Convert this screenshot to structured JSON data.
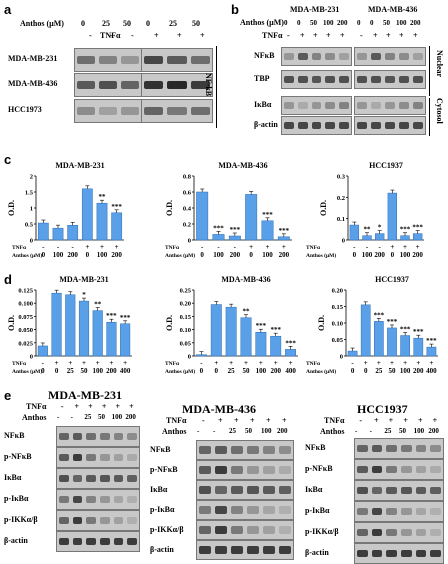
{
  "panel_a": {
    "letter": "a",
    "anthos_label": "Anthos (µM)",
    "anthos_doses": [
      "0",
      "25",
      "50",
      "0",
      "25",
      "50"
    ],
    "tnf_label": "TNFα",
    "tnf_signs": [
      "-",
      "-",
      "-",
      "+",
      "+",
      "+"
    ],
    "rows": [
      "MDA-MB-231",
      "MDA-MB-436",
      "HCC1973"
    ],
    "side_label": "NF-kB"
  },
  "panel_b": {
    "letter": "b",
    "cell_lines": [
      "MDA-MB-231",
      "MDA-MB-436"
    ],
    "anthos_label": "Anthos (µM)",
    "anthos_doses": [
      "0",
      "0",
      "50",
      "100",
      "200",
      "0",
      "0",
      "50",
      "100",
      "200"
    ],
    "tnf_label": "TNFα",
    "tnf_signs": [
      "-",
      "+",
      "+",
      "+",
      "+",
      "-",
      "+",
      "+",
      "+",
      "+"
    ],
    "rows": [
      "NFκB",
      "TBP",
      "IκBα",
      "β-actin"
    ],
    "side_labels": [
      "Nuclear",
      "Cytosol"
    ]
  },
  "panel_c": {
    "letter": "c",
    "x_tnf_label": "TNFα",
    "x_anthos_label": "Anthos (µM)",
    "x_tnf_signs": [
      "-",
      "-",
      "-",
      "+",
      "+",
      "+"
    ],
    "x_anthos_doses": [
      "0",
      "100",
      "200",
      "0",
      "100",
      "200"
    ]
  },
  "panel_d": {
    "letter": "d",
    "x_tnf_label": "TNFα",
    "x_anthos_label": "Anthos (µM)",
    "x_tnf_signs": [
      "-",
      "+",
      "+",
      "+",
      "+",
      "+",
      "+"
    ],
    "x_anthos_doses": [
      "0",
      "0",
      "25",
      "50",
      "100",
      "200",
      "400"
    ]
  },
  "panel_e": {
    "letter": "e",
    "tnf_label": "TNFα",
    "anthos_label": "Anthos",
    "tnf_signs": [
      "-",
      "+",
      "+",
      "+",
      "+",
      "+"
    ],
    "anthos_doses": [
      "-",
      "-",
      "25",
      "50",
      "100",
      "200"
    ],
    "rows": [
      "NFκB",
      "p-NFκB",
      "IκBα",
      "p-IκBα",
      "p-IKKα/β",
      "β-actin"
    ],
    "blots": [
      {
        "title": "MDA-MB-231"
      },
      {
        "title": "MDA-MB-436"
      },
      {
        "title": "HCC1937"
      }
    ]
  },
  "chart_data": [
    {
      "type": "bar",
      "panel": "c",
      "title": "MDA-MB-231",
      "ylabel": "O.D.",
      "ylim": [
        0,
        2
      ],
      "yticks": [
        "0",
        "0.5",
        "1",
        "1.5",
        "2"
      ],
      "categories": [
        "1",
        "2",
        "3",
        "4",
        "5",
        "6"
      ],
      "values": [
        0.53,
        0.37,
        0.46,
        1.6,
        1.15,
        0.85
      ],
      "significance": [
        "",
        "",
        "",
        "",
        "**",
        "***"
      ]
    },
    {
      "type": "bar",
      "panel": "c",
      "title": "MDA-MB-436",
      "ylabel": "O.D.",
      "ylim": [
        0,
        0.8
      ],
      "yticks": [
        "0",
        "0.2",
        "0.4",
        "0.6",
        "0.8"
      ],
      "categories": [
        "1",
        "2",
        "3",
        "4",
        "5",
        "6"
      ],
      "values": [
        0.6,
        0.07,
        0.05,
        0.57,
        0.24,
        0.04
      ],
      "significance": [
        "",
        "***",
        "***",
        "",
        "***",
        "***"
      ]
    },
    {
      "type": "bar",
      "panel": "c",
      "title": "HCC1937",
      "ylabel": "O.D.",
      "ylim": [
        0,
        0.3
      ],
      "yticks": [
        "0",
        "0.1",
        "0.2",
        "0.3"
      ],
      "categories": [
        "1",
        "2",
        "3",
        "4",
        "5",
        "6"
      ],
      "values": [
        0.07,
        0.02,
        0.03,
        0.22,
        0.02,
        0.03
      ],
      "significance": [
        "",
        "**",
        "*",
        "",
        "***",
        "***"
      ]
    },
    {
      "type": "bar",
      "panel": "d",
      "title": "MDA-MB-231",
      "ylabel": "O.D.",
      "ylim": [
        0,
        0.125
      ],
      "yticks": [
        "0",
        "0.025",
        "0.050",
        "0.075",
        "0.100",
        "0.125"
      ],
      "categories": [
        "1",
        "2",
        "3",
        "4",
        "5",
        "6",
        "7"
      ],
      "values": [
        0.019,
        0.119,
        0.116,
        0.104,
        0.086,
        0.064,
        0.061
      ],
      "significance": [
        "",
        "",
        "",
        "*",
        "**",
        "***",
        "***"
      ]
    },
    {
      "type": "bar",
      "panel": "d",
      "title": "MDA-MB-436",
      "ylabel": "O.D.",
      "ylim": [
        0,
        0.25
      ],
      "yticks": [
        "0",
        "0.05",
        "0.10",
        "0.15",
        "0.20",
        "0.25"
      ],
      "categories": [
        "1",
        "2",
        "3",
        "4",
        "5",
        "6",
        "7"
      ],
      "values": [
        0.005,
        0.195,
        0.185,
        0.145,
        0.09,
        0.075,
        0.025
      ],
      "significance": [
        "",
        "",
        "",
        "**",
        "***",
        "***",
        "***"
      ]
    },
    {
      "type": "bar",
      "panel": "d",
      "title": "HCC1937",
      "ylabel": "O.D.",
      "ylim": [
        0,
        0.2
      ],
      "yticks": [
        "0",
        "0.05",
        "0.10",
        "0.15",
        "0.20"
      ],
      "categories": [
        "1",
        "2",
        "3",
        "4",
        "5",
        "6",
        "7"
      ],
      "values": [
        0.015,
        0.155,
        0.105,
        0.085,
        0.062,
        0.054,
        0.027
      ],
      "significance": [
        "",
        "",
        "***",
        "***",
        "***",
        "***",
        "***"
      ]
    }
  ]
}
